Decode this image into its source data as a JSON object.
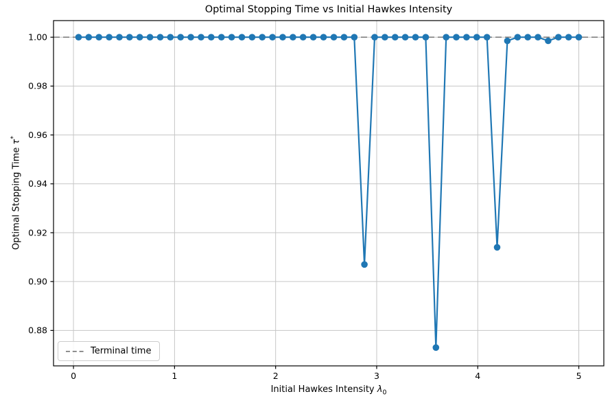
{
  "figure": {
    "title": "Optimal Stopping Time vs Initial Hawkes Intensity",
    "xlabel_prefix": "Initial Hawkes Intensity ",
    "xlabel_symbol": "λ",
    "xlabel_subscript": "0",
    "ylabel_prefix": "Optimal Stopping Time ",
    "ylabel_symbol": "τ",
    "ylabel_superscript": "*"
  },
  "legend": {
    "terminal_label": "Terminal time",
    "position": "lower left"
  },
  "colors": {
    "series": "#1f77b4",
    "terminal_line": "#7f7f7f",
    "grid": "#c6c6c6",
    "spine": "#000000",
    "tick_text": "#000000",
    "legend_border": "#cccccc",
    "background": "#ffffff"
  },
  "chart_data": {
    "type": "line",
    "title": "Optimal Stopping Time vs Initial Hawkes Intensity",
    "xlabel": "Initial Hawkes Intensity λ₀",
    "ylabel": "Optimal Stopping Time τ*",
    "grid": true,
    "legend_position": "lower left",
    "legend_entries": [
      {
        "label": "Terminal time",
        "style": "dashed",
        "color": "#7f7f7f"
      }
    ],
    "terminal_time": 1.0,
    "xlim": [
      -0.1975,
      5.2475
    ],
    "ylim": [
      0.8655,
      1.0068
    ],
    "xticks": [
      0,
      1,
      2,
      3,
      4,
      5
    ],
    "yticks": [
      0.88,
      0.9,
      0.92,
      0.94,
      0.96,
      0.98,
      1.0
    ],
    "x": [
      0.05,
      0.151,
      0.252,
      0.353,
      0.454,
      0.555,
      0.656,
      0.757,
      0.858,
      0.959,
      1.06,
      1.161,
      1.262,
      1.363,
      1.464,
      1.565,
      1.666,
      1.767,
      1.868,
      1.969,
      2.07,
      2.171,
      2.272,
      2.373,
      2.474,
      2.576,
      2.677,
      2.778,
      2.879,
      2.98,
      3.081,
      3.182,
      3.283,
      3.384,
      3.485,
      3.586,
      3.687,
      3.788,
      3.889,
      3.99,
      4.091,
      4.192,
      4.293,
      4.394,
      4.495,
      4.596,
      4.697,
      4.798,
      4.899,
      5.0
    ],
    "y": [
      1.0,
      1.0,
      1.0,
      1.0,
      1.0,
      1.0,
      1.0,
      1.0,
      1.0,
      1.0,
      1.0,
      1.0,
      1.0,
      1.0,
      1.0,
      1.0,
      1.0,
      1.0,
      1.0,
      1.0,
      1.0,
      1.0,
      1.0,
      1.0,
      1.0,
      1.0,
      1.0,
      1.0,
      0.907,
      1.0,
      1.0,
      1.0,
      1.0,
      1.0,
      1.0,
      0.873,
      1.0,
      1.0,
      1.0,
      1.0,
      1.0,
      0.914,
      0.9985,
      1.0,
      1.0,
      1.0,
      0.9985,
      1.0,
      1.0,
      1.0
    ]
  }
}
